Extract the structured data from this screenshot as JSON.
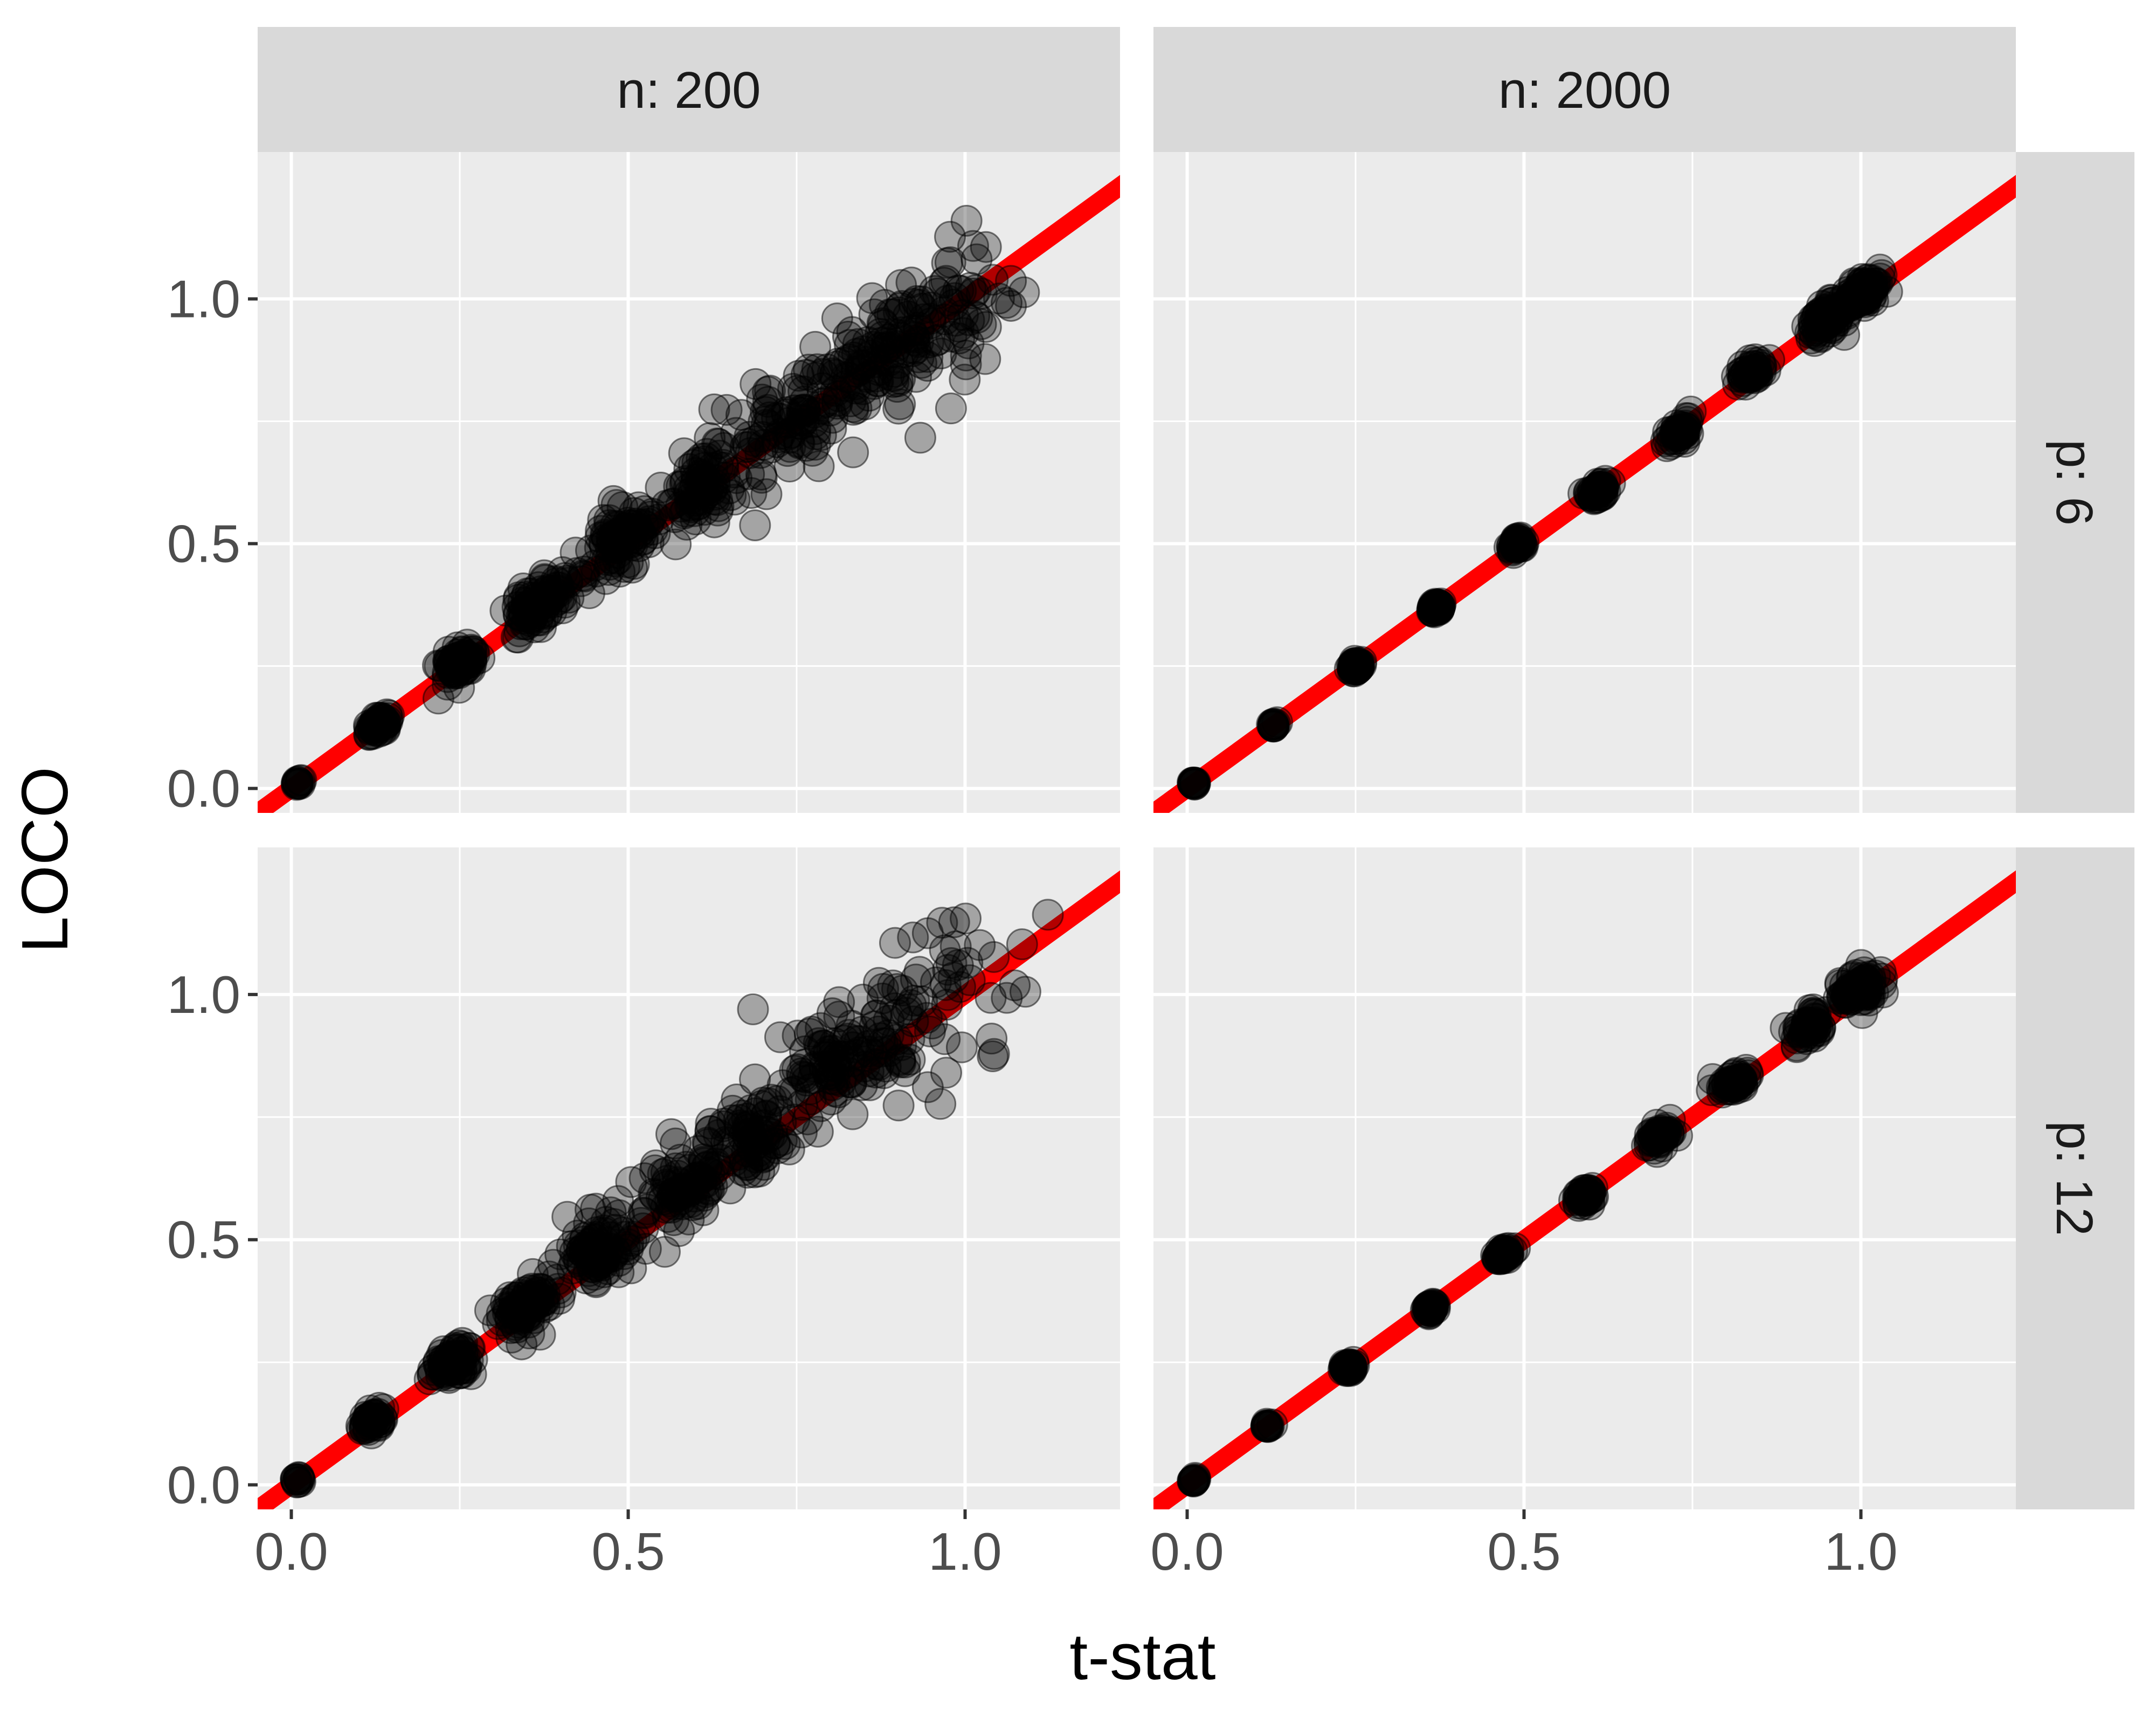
{
  "chart_data": {
    "type": "scatter",
    "xlabel": "t-stat",
    "ylabel": "LOCO",
    "xlim": [
      -0.05,
      1.23
    ],
    "ylim": [
      -0.05,
      1.3
    ],
    "x_ticks": [
      0.0,
      0.5,
      1.0
    ],
    "x_tick_labels": [
      "0.0",
      "0.5",
      "1.0"
    ],
    "y_ticks": [
      0.0,
      0.5,
      1.0
    ],
    "y_tick_labels": [
      "0.0",
      "0.5",
      "1.0"
    ],
    "grid": true,
    "panel_background": "#ebebeb",
    "strip_background": "#d9d9d9",
    "point_color": "#000000",
    "point_alpha": 0.3,
    "reference_line": {
      "slope": 1,
      "intercept": 0,
      "color": "#ff0000"
    },
    "columns": [
      "n: 200",
      "n: 2000"
    ],
    "rows": [
      "p: 6",
      "p: 12"
    ],
    "panels": [
      {
        "col": "n: 200",
        "row": "p: 6",
        "clusters": [
          {
            "x": 0.01,
            "y": 0.01,
            "spread": 0.004
          },
          {
            "x": 0.13,
            "y": 0.13,
            "spread": 0.012
          },
          {
            "x": 0.25,
            "y": 0.26,
            "spread": 0.02
          },
          {
            "x": 0.37,
            "y": 0.38,
            "spread": 0.03
          },
          {
            "x": 0.49,
            "y": 0.5,
            "spread": 0.04
          },
          {
            "x": 0.61,
            "y": 0.62,
            "spread": 0.05
          },
          {
            "x": 0.74,
            "y": 0.75,
            "spread": 0.065
          },
          {
            "x": 0.86,
            "y": 0.86,
            "spread": 0.08
          },
          {
            "x": 0.97,
            "y": 0.97,
            "spread": 0.09
          }
        ]
      },
      {
        "col": "n: 2000",
        "row": "p: 6",
        "clusters": [
          {
            "x": 0.01,
            "y": 0.01,
            "spread": 0.002
          },
          {
            "x": 0.13,
            "y": 0.13,
            "spread": 0.004
          },
          {
            "x": 0.25,
            "y": 0.25,
            "spread": 0.005
          },
          {
            "x": 0.37,
            "y": 0.37,
            "spread": 0.006
          },
          {
            "x": 0.49,
            "y": 0.5,
            "spread": 0.007
          },
          {
            "x": 0.61,
            "y": 0.61,
            "spread": 0.01
          },
          {
            "x": 0.73,
            "y": 0.73,
            "spread": 0.012
          },
          {
            "x": 0.84,
            "y": 0.85,
            "spread": 0.015
          },
          {
            "x": 0.95,
            "y": 0.96,
            "spread": 0.02
          },
          {
            "x": 1.0,
            "y": 1.01,
            "spread": 0.02
          }
        ]
      },
      {
        "col": "n: 200",
        "row": "p: 12",
        "clusters": [
          {
            "x": 0.01,
            "y": 0.01,
            "spread": 0.004
          },
          {
            "x": 0.12,
            "y": 0.13,
            "spread": 0.012
          },
          {
            "x": 0.24,
            "y": 0.25,
            "spread": 0.02
          },
          {
            "x": 0.35,
            "y": 0.36,
            "spread": 0.03
          },
          {
            "x": 0.46,
            "y": 0.48,
            "spread": 0.04
          },
          {
            "x": 0.58,
            "y": 0.6,
            "spread": 0.05
          },
          {
            "x": 0.69,
            "y": 0.72,
            "spread": 0.065
          },
          {
            "x": 0.81,
            "y": 0.85,
            "spread": 0.08
          },
          {
            "x": 0.93,
            "y": 0.97,
            "spread": 0.1
          }
        ]
      },
      {
        "col": "n: 2000",
        "row": "p: 12",
        "clusters": [
          {
            "x": 0.01,
            "y": 0.01,
            "spread": 0.002
          },
          {
            "x": 0.12,
            "y": 0.12,
            "spread": 0.004
          },
          {
            "x": 0.24,
            "y": 0.24,
            "spread": 0.005
          },
          {
            "x": 0.36,
            "y": 0.36,
            "spread": 0.006
          },
          {
            "x": 0.47,
            "y": 0.47,
            "spread": 0.008
          },
          {
            "x": 0.59,
            "y": 0.59,
            "spread": 0.01
          },
          {
            "x": 0.7,
            "y": 0.71,
            "spread": 0.012
          },
          {
            "x": 0.81,
            "y": 0.82,
            "spread": 0.015
          },
          {
            "x": 0.92,
            "y": 0.93,
            "spread": 0.018
          },
          {
            "x": 1.0,
            "y": 1.01,
            "spread": 0.02
          }
        ]
      }
    ]
  }
}
